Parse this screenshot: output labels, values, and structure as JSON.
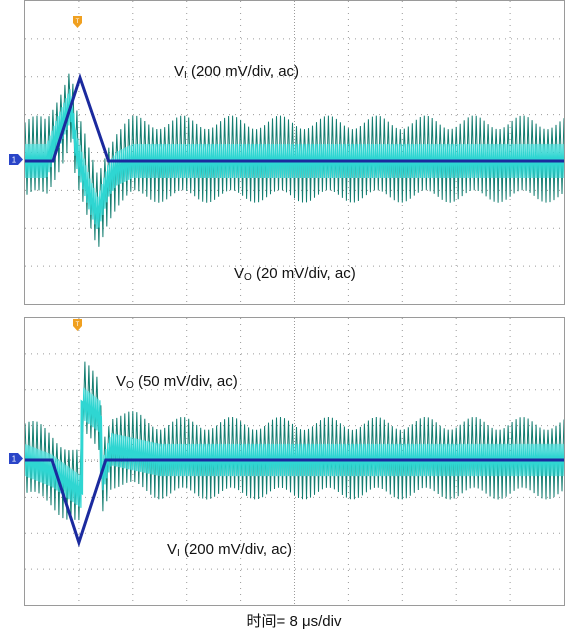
{
  "xlabel": "时间= 8 μs/div",
  "markers": {
    "trigger": "T",
    "ground": "1"
  },
  "colors": {
    "vi": "#1b2a9e",
    "vo_bright": "#2fd6d2",
    "vo_dark": "#127d70",
    "trigger": "#f0a020",
    "ground": "#2a45c8",
    "grid": "#9a9a9a"
  },
  "chart_data": [
    {
      "type": "line",
      "grid": true,
      "x_divisions": 10,
      "y_divisions": 8,
      "x_unit": "μs",
      "x_per_div": 8,
      "series": [
        {
          "name": "VI (200 mV/div, ac)",
          "label_main": "V",
          "label_sub": "I",
          "label_rest": " (200 mV/div, ac)",
          "x": [
            0,
            5.2,
            10.2,
            15.5,
            100
          ],
          "y": [
            0,
            0,
            2.2,
            0,
            0
          ]
        },
        {
          "name": "VO (20 mV/div, ac)",
          "label_main": "V",
          "label_sub": "O",
          "label_rest": " (20 mV/div, ac)",
          "x": [
            0,
            4,
            6,
            8.5,
            9.5,
            12,
            13.5,
            15.5,
            17,
            20,
            25,
            100
          ],
          "y": [
            0,
            0,
            0.7,
            1.5,
            0.3,
            -0.9,
            -1.4,
            -0.5,
            -0.2,
            0,
            0,
            0
          ]
        }
      ]
    },
    {
      "type": "line",
      "grid": true,
      "x_divisions": 10,
      "y_divisions": 8,
      "x_unit": "μs",
      "x_per_div": 8,
      "series": [
        {
          "name": "VO (50 mV/div, ac)",
          "label_main": "V",
          "label_sub": "O",
          "label_rest": " (50 mV/div, ac)",
          "x": [
            0,
            5,
            10.5,
            10.6,
            14,
            14.2,
            16,
            25,
            100
          ],
          "y": [
            0,
            -0.3,
            -0.9,
            1.6,
            1.2,
            -0.5,
            0.3,
            0,
            0
          ]
        },
        {
          "name": "VI (200 mV/div, ac)",
          "label_main": "V",
          "label_sub": "I",
          "label_rest": " (200 mV/div, ac)",
          "x": [
            0,
            5,
            10,
            15,
            100
          ],
          "y": [
            0,
            0,
            -2.3,
            0,
            0
          ]
        }
      ]
    }
  ]
}
